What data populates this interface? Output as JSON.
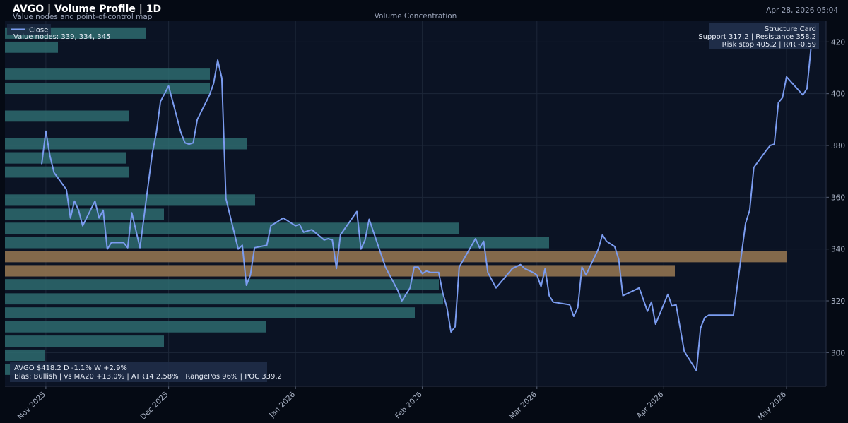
{
  "header": {
    "title": "AVGO | Volume Profile | 1D",
    "subtitle": "Value nodes and point-of-control map",
    "timestamp": "Apr 28, 2026 05:04"
  },
  "chart_data": {
    "type": "line",
    "title": "Volume Concentration",
    "legend": {
      "label": "Close",
      "placement": "top-left"
    },
    "colors": {
      "price": "#7b9cf0",
      "volume": "#2e6b6e",
      "poc": "#8a6e4e",
      "plot_bg": "#0b1324",
      "page_bg": "#050a14"
    },
    "y_ticks": [
      300,
      320,
      340,
      360,
      380,
      400,
      420
    ],
    "y_range": [
      287,
      428
    ],
    "x_range": [
      "2025-10-22",
      "2026-05-06"
    ],
    "x_ticks": [
      {
        "date": "2025-11-01",
        "label": "Nov 2025"
      },
      {
        "date": "2025-12-01",
        "label": "Dec 2025"
      },
      {
        "date": "2026-01-01",
        "label": "Jan 2026"
      },
      {
        "date": "2026-02-01",
        "label": "Feb 2026"
      },
      {
        "date": "2026-03-01",
        "label": "Mar 2026"
      },
      {
        "date": "2026-04-01",
        "label": "Apr 2026"
      },
      {
        "date": "2026-05-01",
        "label": "May 2026"
      }
    ],
    "series": [
      {
        "name": "Close",
        "points": [
          [
            "2025-10-31",
            373
          ],
          [
            "2025-11-01",
            385.5
          ],
          [
            "2025-11-02",
            376
          ],
          [
            "2025-11-03",
            369.5
          ],
          [
            "2025-11-06",
            363
          ],
          [
            "2025-11-07",
            352
          ],
          [
            "2025-11-08",
            358.5
          ],
          [
            "2025-11-09",
            355
          ],
          [
            "2025-11-10",
            349
          ],
          [
            "2025-11-13",
            358.5
          ],
          [
            "2025-11-14",
            352
          ],
          [
            "2025-11-15",
            355
          ],
          [
            "2025-11-16",
            340
          ],
          [
            "2025-11-17",
            342.5
          ],
          [
            "2025-11-20",
            342.5
          ],
          [
            "2025-11-21",
            340.5
          ],
          [
            "2025-11-22",
            354
          ],
          [
            "2025-11-24",
            340.5
          ],
          [
            "2025-11-27",
            377
          ],
          [
            "2025-11-28",
            385
          ],
          [
            "2025-11-29",
            397
          ],
          [
            "2025-12-01",
            403
          ],
          [
            "2025-12-04",
            385
          ],
          [
            "2025-12-05",
            381
          ],
          [
            "2025-12-06",
            380.5
          ],
          [
            "2025-12-07",
            381
          ],
          [
            "2025-12-08",
            390
          ],
          [
            "2025-12-11",
            399.5
          ],
          [
            "2025-12-12",
            404
          ],
          [
            "2025-12-13",
            413
          ],
          [
            "2025-12-14",
            406
          ],
          [
            "2025-12-15",
            359.5
          ],
          [
            "2025-12-18",
            340
          ],
          [
            "2025-12-19",
            341.5
          ],
          [
            "2025-12-20",
            326
          ],
          [
            "2025-12-21",
            330
          ],
          [
            "2025-12-22",
            340.5
          ],
          [
            "2025-12-25",
            341.5
          ],
          [
            "2025-12-26",
            349
          ],
          [
            "2025-12-29",
            352
          ],
          [
            "2025-12-30",
            351
          ],
          [
            "2026-01-01",
            349
          ],
          [
            "2026-01-02",
            349.5
          ],
          [
            "2026-01-03",
            346.5
          ],
          [
            "2026-01-05",
            347.5
          ],
          [
            "2026-01-08",
            343.5
          ],
          [
            "2026-01-09",
            344
          ],
          [
            "2026-01-10",
            343.5
          ],
          [
            "2026-01-11",
            332.5
          ],
          [
            "2026-01-12",
            345.5
          ],
          [
            "2026-01-16",
            354.5
          ],
          [
            "2026-01-17",
            340
          ],
          [
            "2026-01-18",
            343.5
          ],
          [
            "2026-01-19",
            351.5
          ],
          [
            "2026-01-23",
            333
          ],
          [
            "2026-01-26",
            324
          ],
          [
            "2026-01-27",
            320
          ],
          [
            "2026-01-29",
            325
          ],
          [
            "2026-01-30",
            333
          ],
          [
            "2026-01-31",
            333
          ],
          [
            "2026-02-01",
            330.5
          ],
          [
            "2026-02-02",
            331.5
          ],
          [
            "2026-02-03",
            331
          ],
          [
            "2026-02-05",
            331
          ],
          [
            "2026-02-06",
            323
          ],
          [
            "2026-02-07",
            317.5
          ],
          [
            "2026-02-08",
            308
          ],
          [
            "2026-02-09",
            310
          ],
          [
            "2026-02-10",
            333
          ],
          [
            "2026-02-14",
            344
          ],
          [
            "2026-02-15",
            340.5
          ],
          [
            "2026-02-16",
            343
          ],
          [
            "2026-02-17",
            331
          ],
          [
            "2026-02-19",
            325
          ],
          [
            "2026-02-23",
            332.5
          ],
          [
            "2026-02-25",
            334
          ],
          [
            "2026-02-26",
            332.5
          ],
          [
            "2026-02-28",
            331
          ],
          [
            "2026-03-01",
            330
          ],
          [
            "2026-03-02",
            325.5
          ],
          [
            "2026-03-03",
            332.5
          ],
          [
            "2026-03-04",
            322
          ],
          [
            "2026-03-05",
            319.5
          ],
          [
            "2026-03-09",
            318.5
          ],
          [
            "2026-03-10",
            314
          ],
          [
            "2026-03-11",
            317.5
          ],
          [
            "2026-03-12",
            333
          ],
          [
            "2026-03-13",
            330
          ],
          [
            "2026-03-16",
            340
          ],
          [
            "2026-03-17",
            345.5
          ],
          [
            "2026-03-18",
            343
          ],
          [
            "2026-03-20",
            341
          ],
          [
            "2026-03-21",
            336
          ],
          [
            "2026-03-22",
            322
          ],
          [
            "2026-03-26",
            325
          ],
          [
            "2026-03-28",
            316
          ],
          [
            "2026-03-29",
            319.5
          ],
          [
            "2026-03-30",
            311
          ],
          [
            "2026-04-02",
            322.5
          ],
          [
            "2026-04-03",
            318
          ],
          [
            "2026-04-04",
            318.5
          ],
          [
            "2026-04-06",
            300.5
          ],
          [
            "2026-04-09",
            293
          ],
          [
            "2026-04-10",
            309.5
          ],
          [
            "2026-04-11",
            313.5
          ],
          [
            "2026-04-12",
            314.5
          ],
          [
            "2026-04-13",
            314.5
          ],
          [
            "2026-04-18",
            314.5
          ],
          [
            "2026-04-21",
            350
          ],
          [
            "2026-04-22",
            355
          ],
          [
            "2026-04-23",
            371.5
          ],
          [
            "2026-04-26",
            378
          ],
          [
            "2026-04-27",
            380
          ],
          [
            "2026-04-28",
            380.5
          ],
          [
            "2026-04-29",
            396.5
          ],
          [
            "2026-04-30",
            398.5
          ],
          [
            "2026-05-01",
            406.5
          ],
          [
            "2026-05-05",
            399.5
          ],
          [
            "2026-05-06",
            402
          ],
          [
            "2026-05-07",
            418.2
          ]
        ]
      }
    ],
    "volume_profile": [
      {
        "low": 421.2,
        "high": 425.6,
        "volume": 200,
        "poc": false
      },
      {
        "low": 415.8,
        "high": 420.1,
        "volume": 75,
        "poc": false
      },
      {
        "low": 405.4,
        "high": 409.7,
        "volume": 290,
        "poc": false
      },
      {
        "low": 399.9,
        "high": 404.2,
        "volume": 290,
        "poc": false
      },
      {
        "low": 389.2,
        "high": 393.5,
        "volume": 175,
        "poc": false
      },
      {
        "low": 378.5,
        "high": 382.8,
        "volume": 342,
        "poc": false
      },
      {
        "low": 373.0,
        "high": 377.4,
        "volume": 172,
        "poc": false
      },
      {
        "low": 367.6,
        "high": 371.9,
        "volume": 175,
        "poc": false
      },
      {
        "low": 356.7,
        "high": 361.1,
        "volume": 354,
        "poc": false
      },
      {
        "low": 351.3,
        "high": 355.6,
        "volume": 225,
        "poc": false
      },
      {
        "low": 345.8,
        "high": 350.2,
        "volume": 642,
        "poc": false
      },
      {
        "low": 340.3,
        "high": 344.7,
        "volume": 770,
        "poc": false
      },
      {
        "low": 334.9,
        "high": 339.3,
        "volume": 1107,
        "poc": true
      },
      {
        "low": 329.4,
        "high": 333.8,
        "volume": 948,
        "poc": true
      },
      {
        "low": 324.1,
        "high": 328.4,
        "volume": 614,
        "poc": false
      },
      {
        "low": 318.6,
        "high": 322.9,
        "volume": 620,
        "poc": false
      },
      {
        "low": 313.2,
        "high": 317.5,
        "volume": 580,
        "poc": false
      },
      {
        "low": 307.8,
        "high": 312.1,
        "volume": 369,
        "poc": false
      },
      {
        "low": 302.2,
        "high": 306.6,
        "volume": 225,
        "poc": false
      },
      {
        "low": 296.8,
        "high": 301.2,
        "volume": 57,
        "poc": false
      },
      {
        "low": 291.4,
        "high": 295.7,
        "volume": 67,
        "poc": false
      }
    ],
    "value_nodes_text": "Value nodes: 339, 334, 345",
    "structure_card": {
      "title": "Structure Card",
      "line1": "Support 317.2 | Resistance 358.2",
      "line2": "Risk stop 405.2 | R/R -0.59"
    },
    "summary": {
      "line1": "AVGO $418.2  D -1.1%  W +2.9%",
      "line2": "Bias: Bullish | vs MA20 +13.0% | ATR14 2.58% | RangePos 96% | POC 339.2"
    }
  }
}
